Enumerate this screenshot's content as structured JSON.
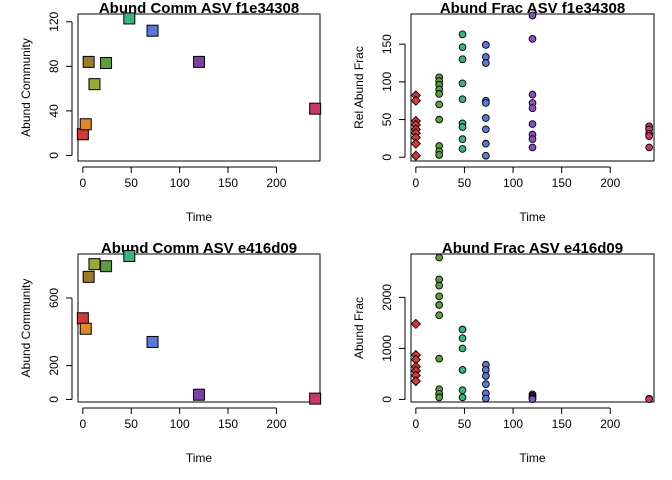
{
  "chart_data": [
    {
      "type": "scatter",
      "marker": "square",
      "title": "Abund Comm ASV f1e34308",
      "xlabel": "Time",
      "ylabel": "Abund Community",
      "xlim": [
        -5,
        245
      ],
      "ylim": [
        -5,
        127
      ],
      "xticks": [
        0,
        50,
        100,
        150,
        200
      ],
      "yticks": [
        0,
        40,
        80,
        120
      ],
      "points": [
        {
          "x": 0,
          "y": 19,
          "color": "#d23a3a"
        },
        {
          "x": 3,
          "y": 28,
          "color": "#e0882c"
        },
        {
          "x": 6,
          "y": 84,
          "color": "#9c7a2c"
        },
        {
          "x": 12,
          "y": 64,
          "color": "#9aab35"
        },
        {
          "x": 24,
          "y": 83,
          "color": "#5a9e3e"
        },
        {
          "x": 48,
          "y": 123,
          "color": "#3cb37a"
        },
        {
          "x": 72,
          "y": 112,
          "color": "#5a78d8"
        },
        {
          "x": 120,
          "y": 84,
          "color": "#7e3fa6"
        },
        {
          "x": 240,
          "y": 42,
          "color": "#c8376a"
        }
      ]
    },
    {
      "type": "scatter",
      "marker": "mixed",
      "title": "Abund Frac ASV f1e34308",
      "xlabel": "Time",
      "ylabel": "Rel Abund Frac",
      "xlim": [
        -5,
        245
      ],
      "ylim": [
        -5,
        190
      ],
      "xticks": [
        0,
        50,
        100,
        150,
        200
      ],
      "yticks": [
        0,
        50,
        100,
        150
      ],
      "points": [
        {
          "x": 0,
          "y": 82,
          "color": "#d23a3a",
          "shape": "diamond"
        },
        {
          "x": 0,
          "y": 75,
          "color": "#d23a3a",
          "shape": "diamond"
        },
        {
          "x": 0,
          "y": 48,
          "color": "#d23a3a",
          "shape": "diamond"
        },
        {
          "x": 0,
          "y": 43,
          "color": "#d23a3a",
          "shape": "diamond"
        },
        {
          "x": 0,
          "y": 37,
          "color": "#d23a3a",
          "shape": "diamond"
        },
        {
          "x": 0,
          "y": 32,
          "color": "#d23a3a",
          "shape": "diamond"
        },
        {
          "x": 0,
          "y": 26,
          "color": "#d23a3a",
          "shape": "diamond"
        },
        {
          "x": 0,
          "y": 18,
          "color": "#d23a3a",
          "shape": "diamond"
        },
        {
          "x": 0,
          "y": 2,
          "color": "#d23a3a",
          "shape": "diamond"
        },
        {
          "x": 24,
          "y": 106,
          "color": "#5a9e3e",
          "shape": "circle"
        },
        {
          "x": 24,
          "y": 101,
          "color": "#5a9e3e",
          "shape": "circle"
        },
        {
          "x": 24,
          "y": 96,
          "color": "#5a9e3e",
          "shape": "circle"
        },
        {
          "x": 24,
          "y": 90,
          "color": "#5a9e3e",
          "shape": "circle"
        },
        {
          "x": 24,
          "y": 84,
          "color": "#5a9e3e",
          "shape": "circle"
        },
        {
          "x": 24,
          "y": 70,
          "color": "#5a9e3e",
          "shape": "circle"
        },
        {
          "x": 24,
          "y": 50,
          "color": "#5a9e3e",
          "shape": "circle"
        },
        {
          "x": 24,
          "y": 15,
          "color": "#5a9e3e",
          "shape": "circle"
        },
        {
          "x": 24,
          "y": 8,
          "color": "#5a9e3e",
          "shape": "circle"
        },
        {
          "x": 24,
          "y": 3,
          "color": "#5a9e3e",
          "shape": "circle"
        },
        {
          "x": 48,
          "y": 163,
          "color": "#3cb37a",
          "shape": "circle"
        },
        {
          "x": 48,
          "y": 146,
          "color": "#3cb37a",
          "shape": "circle"
        },
        {
          "x": 48,
          "y": 130,
          "color": "#3cb37a",
          "shape": "circle"
        },
        {
          "x": 48,
          "y": 98,
          "color": "#3cb37a",
          "shape": "circle"
        },
        {
          "x": 48,
          "y": 77,
          "color": "#3cb37a",
          "shape": "circle"
        },
        {
          "x": 48,
          "y": 45,
          "color": "#3cb37a",
          "shape": "circle"
        },
        {
          "x": 48,
          "y": 40,
          "color": "#3cb37a",
          "shape": "circle"
        },
        {
          "x": 48,
          "y": 24,
          "color": "#3cb37a",
          "shape": "circle"
        },
        {
          "x": 48,
          "y": 11,
          "color": "#3cb37a",
          "shape": "circle"
        },
        {
          "x": 72,
          "y": 149,
          "color": "#5a78d8",
          "shape": "circle"
        },
        {
          "x": 72,
          "y": 133,
          "color": "#5a78d8",
          "shape": "circle"
        },
        {
          "x": 72,
          "y": 125,
          "color": "#5a78d8",
          "shape": "circle"
        },
        {
          "x": 72,
          "y": 75,
          "color": "#5a78d8",
          "shape": "circle"
        },
        {
          "x": 72,
          "y": 72,
          "color": "#5a78d8",
          "shape": "circle"
        },
        {
          "x": 72,
          "y": 52,
          "color": "#5a78d8",
          "shape": "circle"
        },
        {
          "x": 72,
          "y": 37,
          "color": "#5a78d8",
          "shape": "circle"
        },
        {
          "x": 72,
          "y": 18,
          "color": "#5a78d8",
          "shape": "circle"
        },
        {
          "x": 72,
          "y": 2,
          "color": "#5a78d8",
          "shape": "circle"
        },
        {
          "x": 120,
          "y": 188,
          "color": "#8a4fbf",
          "shape": "circle"
        },
        {
          "x": 120,
          "y": 157,
          "color": "#8a4fbf",
          "shape": "circle"
        },
        {
          "x": 120,
          "y": 83,
          "color": "#8a4fbf",
          "shape": "circle"
        },
        {
          "x": 120,
          "y": 72,
          "color": "#8a4fbf",
          "shape": "circle"
        },
        {
          "x": 120,
          "y": 65,
          "color": "#8a4fbf",
          "shape": "circle"
        },
        {
          "x": 120,
          "y": 44,
          "color": "#8a4fbf",
          "shape": "circle"
        },
        {
          "x": 120,
          "y": 30,
          "color": "#8a4fbf",
          "shape": "circle"
        },
        {
          "x": 120,
          "y": 24,
          "color": "#8a4fbf",
          "shape": "circle"
        },
        {
          "x": 120,
          "y": 13,
          "color": "#8a4fbf",
          "shape": "circle"
        },
        {
          "x": 240,
          "y": 41,
          "color": "#c8376a",
          "shape": "circle"
        },
        {
          "x": 240,
          "y": 37,
          "color": "#c8376a",
          "shape": "circle"
        },
        {
          "x": 240,
          "y": 31,
          "color": "#c8376a",
          "shape": "circle"
        },
        {
          "x": 240,
          "y": 28,
          "color": "#c8376a",
          "shape": "circle"
        },
        {
          "x": 240,
          "y": 13,
          "color": "#c8376a",
          "shape": "circle"
        }
      ]
    },
    {
      "type": "scatter",
      "marker": "square",
      "title": "Abund Comm ASV e416d09",
      "xlabel": "Time",
      "ylabel": "Abund Community",
      "xlim": [
        -5,
        245
      ],
      "ylim": [
        -15,
        860
      ],
      "xticks": [
        0,
        50,
        100,
        150,
        200
      ],
      "yticks": [
        0,
        200,
        600
      ],
      "points": [
        {
          "x": 0,
          "y": 480,
          "color": "#d23a3a"
        },
        {
          "x": 3,
          "y": 418,
          "color": "#e0882c"
        },
        {
          "x": 6,
          "y": 725,
          "color": "#9c7a2c"
        },
        {
          "x": 12,
          "y": 800,
          "color": "#9aab35"
        },
        {
          "x": 24,
          "y": 788,
          "color": "#5a9e3e"
        },
        {
          "x": 48,
          "y": 848,
          "color": "#3cb37a"
        },
        {
          "x": 72,
          "y": 340,
          "color": "#5a78d8"
        },
        {
          "x": 120,
          "y": 28,
          "color": "#7e3fa6"
        },
        {
          "x": 240,
          "y": 5,
          "color": "#c8376a"
        }
      ]
    },
    {
      "type": "scatter",
      "marker": "mixed",
      "title": "Abund Frac ASV e416d09",
      "xlabel": "Time",
      "ylabel": "Abund Frac",
      "xlim": [
        -5,
        245
      ],
      "ylim": [
        -50,
        2850
      ],
      "xticks": [
        0,
        50,
        100,
        150,
        200
      ],
      "yticks": [
        0,
        1000,
        2000
      ],
      "points": [
        {
          "x": 0,
          "y": 1480,
          "color": "#d23a3a",
          "shape": "diamond"
        },
        {
          "x": 0,
          "y": 870,
          "color": "#d23a3a",
          "shape": "diamond"
        },
        {
          "x": 0,
          "y": 780,
          "color": "#d23a3a",
          "shape": "diamond"
        },
        {
          "x": 0,
          "y": 640,
          "color": "#d23a3a",
          "shape": "diamond"
        },
        {
          "x": 0,
          "y": 560,
          "color": "#d23a3a",
          "shape": "diamond"
        },
        {
          "x": 0,
          "y": 470,
          "color": "#d23a3a",
          "shape": "diamond"
        },
        {
          "x": 0,
          "y": 360,
          "color": "#d23a3a",
          "shape": "diamond"
        },
        {
          "x": 24,
          "y": 2780,
          "color": "#5a9e3e",
          "shape": "circle"
        },
        {
          "x": 24,
          "y": 2350,
          "color": "#5a9e3e",
          "shape": "circle"
        },
        {
          "x": 24,
          "y": 2230,
          "color": "#5a9e3e",
          "shape": "circle"
        },
        {
          "x": 24,
          "y": 2020,
          "color": "#5a9e3e",
          "shape": "circle"
        },
        {
          "x": 24,
          "y": 1850,
          "color": "#5a9e3e",
          "shape": "circle"
        },
        {
          "x": 24,
          "y": 1650,
          "color": "#5a9e3e",
          "shape": "circle"
        },
        {
          "x": 24,
          "y": 800,
          "color": "#5a9e3e",
          "shape": "circle"
        },
        {
          "x": 24,
          "y": 200,
          "color": "#5a9e3e",
          "shape": "circle"
        },
        {
          "x": 24,
          "y": 110,
          "color": "#5a9e3e",
          "shape": "circle"
        },
        {
          "x": 24,
          "y": 40,
          "color": "#5a9e3e",
          "shape": "circle"
        },
        {
          "x": 48,
          "y": 1370,
          "color": "#3cb37a",
          "shape": "circle"
        },
        {
          "x": 48,
          "y": 1200,
          "color": "#3cb37a",
          "shape": "circle"
        },
        {
          "x": 48,
          "y": 1000,
          "color": "#3cb37a",
          "shape": "circle"
        },
        {
          "x": 48,
          "y": 580,
          "color": "#3cb37a",
          "shape": "circle"
        },
        {
          "x": 48,
          "y": 180,
          "color": "#3cb37a",
          "shape": "circle"
        },
        {
          "x": 48,
          "y": 40,
          "color": "#3cb37a",
          "shape": "circle"
        },
        {
          "x": 72,
          "y": 680,
          "color": "#5a78d8",
          "shape": "circle"
        },
        {
          "x": 72,
          "y": 580,
          "color": "#5a78d8",
          "shape": "circle"
        },
        {
          "x": 72,
          "y": 460,
          "color": "#5a78d8",
          "shape": "circle"
        },
        {
          "x": 72,
          "y": 300,
          "color": "#5a78d8",
          "shape": "circle"
        },
        {
          "x": 72,
          "y": 120,
          "color": "#5a78d8",
          "shape": "circle"
        },
        {
          "x": 72,
          "y": 20,
          "color": "#5a78d8",
          "shape": "circle"
        },
        {
          "x": 120,
          "y": 100,
          "color": "#8a4fbf",
          "shape": "circle"
        },
        {
          "x": 120,
          "y": 70,
          "color": "#8a4fbf",
          "shape": "circle"
        },
        {
          "x": 120,
          "y": 45,
          "color": "#8a4fbf",
          "shape": "circle"
        },
        {
          "x": 120,
          "y": 20,
          "color": "#8a4fbf",
          "shape": "circle"
        },
        {
          "x": 120,
          "y": 5,
          "color": "#8a4fbf",
          "shape": "circle"
        },
        {
          "x": 240,
          "y": 15,
          "color": "#c8376a",
          "shape": "circle"
        },
        {
          "x": 240,
          "y": 5,
          "color": "#c8376a",
          "shape": "circle"
        }
      ]
    }
  ]
}
